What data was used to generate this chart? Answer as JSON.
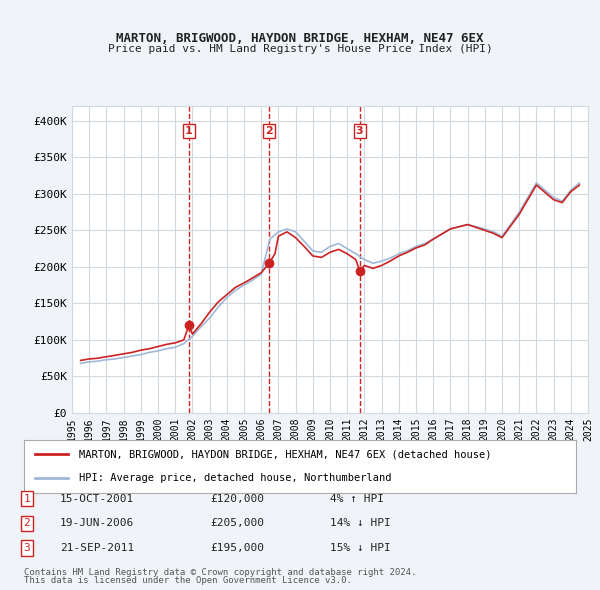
{
  "title": "MARTON, BRIGWOOD, HAYDON BRIDGE, HEXHAM, NE47 6EX",
  "subtitle": "Price paid vs. HM Land Registry's House Price Index (HPI)",
  "background_color": "#f0f4f8",
  "plot_bg_color": "#ffffff",
  "grid_color": "#d0d8e0",
  "hpi_color": "#a0b8d8",
  "price_color": "#cc2222",
  "vline_color": "#cc2222",
  "ylim": [
    0,
    420000
  ],
  "yticks": [
    0,
    50000,
    100000,
    150000,
    200000,
    250000,
    300000,
    350000,
    400000
  ],
  "ytick_labels": [
    "£0",
    "£50K",
    "£100K",
    "£150K",
    "£200K",
    "£250K",
    "£300K",
    "£350K",
    "£400K"
  ],
  "transactions": [
    {
      "label": "1",
      "date": "15-OCT-2001",
      "price": 120000,
      "hpi_diff": "4% ↑ HPI",
      "x": 2001.79
    },
    {
      "label": "2",
      "date": "19-JUN-2006",
      "price": 205000,
      "hpi_diff": "14% ↓ HPI",
      "x": 2006.46
    },
    {
      "label": "3",
      "date": "21-SEP-2011",
      "price": 195000,
      "hpi_diff": "15% ↓ HPI",
      "x": 2011.72
    }
  ],
  "legend_line1": "MARTON, BRIGWOOD, HAYDON BRIDGE, HEXHAM, NE47 6EX (detached house)",
  "legend_line2": "HPI: Average price, detached house, Northumberland",
  "footer1": "Contains HM Land Registry data © Crown copyright and database right 2024.",
  "footer2": "This data is licensed under the Open Government Licence v3.0.",
  "hpi_data_x": [
    1995.5,
    1996.0,
    1996.5,
    1997.0,
    1997.5,
    1998.0,
    1998.5,
    1999.0,
    1999.5,
    2000.0,
    2000.5,
    2001.0,
    2001.5,
    2002.0,
    2002.5,
    2003.0,
    2003.5,
    2004.0,
    2004.5,
    2005.0,
    2005.5,
    2006.0,
    2006.5,
    2007.0,
    2007.5,
    2008.0,
    2008.5,
    2009.0,
    2009.5,
    2010.0,
    2010.5,
    2011.0,
    2011.5,
    2012.0,
    2012.5,
    2013.0,
    2013.5,
    2014.0,
    2014.5,
    2015.0,
    2015.5,
    2016.0,
    2016.5,
    2017.0,
    2017.5,
    2018.0,
    2018.5,
    2019.0,
    2019.5,
    2020.0,
    2020.5,
    2021.0,
    2021.5,
    2022.0,
    2022.5,
    2023.0,
    2023.5,
    2024.0,
    2024.5
  ],
  "hpi_data_y": [
    68000,
    70000,
    71000,
    73000,
    74000,
    76000,
    78000,
    80000,
    83000,
    85000,
    88000,
    90000,
    95000,
    105000,
    118000,
    130000,
    145000,
    158000,
    168000,
    175000,
    182000,
    190000,
    238000,
    248000,
    252000,
    248000,
    235000,
    222000,
    220000,
    228000,
    232000,
    225000,
    218000,
    210000,
    205000,
    208000,
    212000,
    218000,
    222000,
    228000,
    232000,
    238000,
    245000,
    252000,
    255000,
    258000,
    255000,
    252000,
    248000,
    242000,
    258000,
    275000,
    295000,
    315000,
    305000,
    295000,
    290000,
    305000,
    315000
  ],
  "price_data_x": [
    1995.5,
    1996.0,
    1996.5,
    1997.0,
    1997.5,
    1998.0,
    1998.5,
    1999.0,
    1999.5,
    2000.0,
    2000.5,
    2001.0,
    2001.5,
    2001.79,
    2002.0,
    2002.5,
    2003.0,
    2003.5,
    2004.0,
    2004.5,
    2005.0,
    2005.5,
    2006.0,
    2006.46,
    2006.8,
    2007.0,
    2007.5,
    2008.0,
    2008.5,
    2009.0,
    2009.5,
    2010.0,
    2010.5,
    2011.0,
    2011.5,
    2011.72,
    2012.0,
    2012.5,
    2013.0,
    2013.5,
    2014.0,
    2014.5,
    2015.0,
    2015.5,
    2016.0,
    2016.5,
    2017.0,
    2017.5,
    2018.0,
    2018.5,
    2019.0,
    2019.5,
    2020.0,
    2020.5,
    2021.0,
    2021.5,
    2022.0,
    2022.5,
    2023.0,
    2023.5,
    2024.0,
    2024.5
  ],
  "price_data_y": [
    72000,
    74000,
    75000,
    77000,
    79000,
    81000,
    83000,
    86000,
    88000,
    91000,
    94000,
    96000,
    100000,
    120000,
    108000,
    122000,
    138000,
    152000,
    162000,
    172000,
    178000,
    185000,
    192000,
    205000,
    218000,
    242000,
    248000,
    240000,
    228000,
    215000,
    213000,
    220000,
    224000,
    218000,
    210000,
    195000,
    202000,
    198000,
    202000,
    208000,
    215000,
    220000,
    226000,
    230000,
    238000,
    245000,
    252000,
    255000,
    258000,
    254000,
    250000,
    246000,
    240000,
    256000,
    272000,
    292000,
    312000,
    302000,
    292000,
    288000,
    303000,
    312000
  ],
  "xtick_years": [
    1995,
    1996,
    1997,
    1998,
    1999,
    2000,
    2001,
    2002,
    2003,
    2004,
    2005,
    2006,
    2007,
    2008,
    2009,
    2010,
    2011,
    2012,
    2013,
    2014,
    2015,
    2016,
    2017,
    2018,
    2019,
    2020,
    2021,
    2022,
    2023,
    2024,
    2025
  ]
}
